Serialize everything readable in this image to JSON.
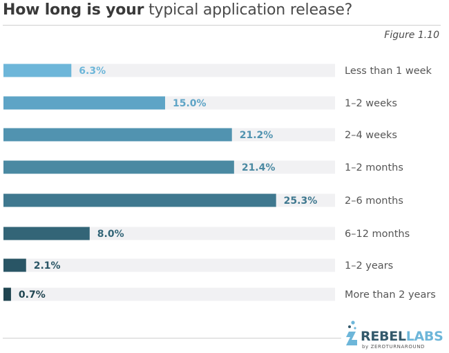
{
  "header": {
    "title_bold": "How long is your",
    "title_light": "typical application release?",
    "figure_label": "Figure 1.10"
  },
  "chart_data": {
    "type": "bar",
    "orientation": "horizontal",
    "categories": [
      "Less than 1 week",
      "1–2 weeks",
      "2–4 weeks",
      "1–2 months",
      "2–6 months",
      "6–12 months",
      "1–2 years",
      "More than 2 years"
    ],
    "values": [
      6.3,
      15.0,
      21.2,
      21.4,
      25.3,
      8.0,
      2.1,
      0.7
    ],
    "value_labels": [
      "6.3%",
      "15.0%",
      "21.2%",
      "21.4%",
      "25.3%",
      "8.0%",
      "2.1%",
      "0.7%"
    ],
    "bar_colors": [
      "#6db6d9",
      "#5ea4c6",
      "#5193b0",
      "#4a89a2",
      "#3f788f",
      "#336577",
      "#295565",
      "#1f4450"
    ],
    "track_color": "#f1f1f3",
    "label_color_light": "#6db6d9",
    "xlim": [
      0,
      100
    ],
    "title": "How long is your typical application release?"
  },
  "logo": {
    "main_left": "REBEL",
    "main_right": "LABS",
    "sub": "by ZEROTURNAROUND",
    "colors": {
      "rebel": "#33596b",
      "labs": "#6db6d9"
    }
  }
}
